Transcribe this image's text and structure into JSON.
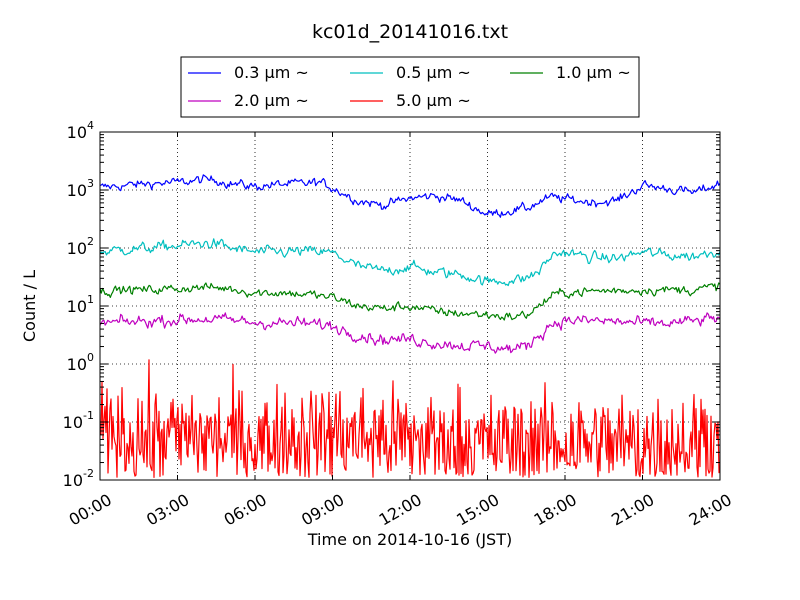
{
  "chart_data": {
    "type": "line",
    "title": "kc01d_20141016.txt",
    "xlabel": "Time on 2014-10-16 (JST)",
    "ylabel": "Count / L",
    "xlim": [
      0,
      24
    ],
    "ylim": [
      0.01,
      10000
    ],
    "yscale": "log",
    "grid": true,
    "legend_position": "top-center",
    "x_ticks": [
      {
        "value": 0,
        "label": "00:00"
      },
      {
        "value": 3,
        "label": "03:00"
      },
      {
        "value": 6,
        "label": "06:00"
      },
      {
        "value": 9,
        "label": "09:00"
      },
      {
        "value": 12,
        "label": "12:00"
      },
      {
        "value": 15,
        "label": "15:00"
      },
      {
        "value": 18,
        "label": "18:00"
      },
      {
        "value": 21,
        "label": "21:00"
      },
      {
        "value": 24,
        "label": "24:00"
      }
    ],
    "y_ticks": [
      {
        "value": 0.01,
        "base": "10",
        "exp": "-2"
      },
      {
        "value": 0.1,
        "base": "10",
        "exp": "-1"
      },
      {
        "value": 1,
        "base": "10",
        "exp": "0"
      },
      {
        "value": 10,
        "base": "10",
        "exp": "1"
      },
      {
        "value": 100,
        "base": "10",
        "exp": "2"
      },
      {
        "value": 1000,
        "base": "10",
        "exp": "3"
      },
      {
        "value": 10000,
        "base": "10",
        "exp": "4"
      }
    ],
    "series": [
      {
        "name": "0.3 μm ~",
        "color": "#0000ff",
        "noise": 0.035,
        "x": [
          0,
          1,
          2,
          3,
          4,
          4.5,
          5,
          6,
          7,
          8,
          8.5,
          9,
          10,
          11,
          12,
          13,
          14,
          15,
          16,
          16.5,
          17,
          17.5,
          18,
          19,
          20,
          21,
          22,
          23,
          24
        ],
        "y": [
          1100,
          1200,
          1300,
          1350,
          1500,
          1500,
          1300,
          1150,
          1250,
          1300,
          1350,
          1100,
          650,
          550,
          720,
          800,
          650,
          380,
          450,
          480,
          620,
          750,
          700,
          620,
          650,
          1200,
          1050,
          900,
          1300
        ]
      },
      {
        "name": "0.5 μm ~",
        "color": "#00bfbf",
        "noise": 0.04,
        "x": [
          0,
          1,
          2,
          3,
          4,
          4.5,
          5,
          6,
          7,
          8,
          9,
          10,
          11,
          12,
          13,
          14,
          15,
          16,
          16.5,
          17,
          17.5,
          18,
          19,
          20,
          21,
          22,
          23,
          24
        ],
        "y": [
          85,
          95,
          100,
          110,
          120,
          120,
          100,
          85,
          85,
          88,
          82,
          48,
          40,
          48,
          38,
          35,
          26,
          28,
          30,
          40,
          75,
          85,
          68,
          66,
          85,
          75,
          72,
          92
        ]
      },
      {
        "name": "1.0 μm ~",
        "color": "#008000",
        "noise": 0.035,
        "x": [
          0,
          1,
          2,
          3,
          4,
          5,
          6,
          7,
          8,
          9,
          10,
          11,
          12,
          13,
          14,
          15,
          16,
          16.5,
          17,
          17.5,
          18,
          19,
          20,
          21,
          22,
          23,
          24
        ],
        "y": [
          18,
          19,
          19,
          20,
          21,
          20,
          17,
          17,
          16,
          14,
          10,
          9,
          10,
          8,
          7.5,
          7,
          6.5,
          7,
          10,
          15,
          17,
          18,
          18.5,
          19,
          19,
          19,
          22
        ]
      },
      {
        "name": "2.0 μm ~",
        "color": "#bf00bf",
        "noise": 0.045,
        "x": [
          0,
          1,
          2,
          3,
          4,
          5,
          6,
          7,
          8,
          9,
          10,
          11,
          12,
          13,
          14,
          15,
          16,
          16.5,
          17,
          17.5,
          18,
          19,
          20,
          21,
          22,
          23,
          24
        ],
        "y": [
          5,
          5.3,
          5.5,
          5.8,
          6,
          5.7,
          5.2,
          5.1,
          5,
          4.5,
          3.2,
          2.6,
          2.7,
          2.3,
          2.1,
          2.0,
          1.8,
          2.0,
          3.2,
          5.0,
          5.6,
          5.6,
          5.4,
          5.0,
          5.0,
          5.5,
          6.3
        ]
      },
      {
        "name": "5.0 μm ~",
        "color": "#ff0000",
        "noise": 0.45,
        "x": [
          0,
          3,
          6,
          9,
          12,
          15,
          18,
          21,
          24
        ],
        "y": [
          0.05,
          0.055,
          0.05,
          0.06,
          0.05,
          0.04,
          0.045,
          0.04,
          0.045
        ]
      }
    ]
  }
}
